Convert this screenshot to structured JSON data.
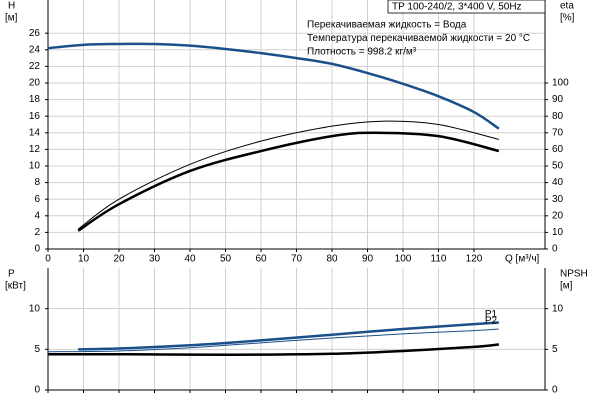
{
  "chart_data": [
    {
      "type": "line",
      "title": "TP 100-240/2, 3*400 V, 50Hz",
      "annotations": [
        "Перекачиваемая жидкость = Вода",
        "Температура перекачиваемой жидкости = 20 °C",
        "Плотность = 998.2 кг/м³"
      ],
      "xlabel": "Q [м³/ч]",
      "ylabel": "H",
      "yunit": "[м]",
      "y2label": "eta",
      "y2unit": "[%]",
      "xlim": [
        0,
        140
      ],
      "xticks": [
        0,
        10,
        20,
        30,
        40,
        50,
        60,
        70,
        80,
        90,
        100,
        110,
        120
      ],
      "ylim": [
        0,
        30
      ],
      "yticks": [
        0,
        2,
        4,
        6,
        8,
        10,
        12,
        14,
        16,
        18,
        20,
        22,
        24,
        26
      ],
      "y2lim": [
        0,
        150
      ],
      "y2ticks": [
        0,
        10,
        20,
        30,
        40,
        50,
        60,
        70,
        80,
        90,
        100
      ],
      "grid": true,
      "show_xtick_labels": true,
      "series": [
        {
          "color": "#1a4f8a",
          "width": 2.5,
          "x": [
            0,
            10,
            20,
            30,
            40,
            50,
            60,
            70,
            80,
            90,
            100,
            110,
            120,
            127
          ],
          "values": [
            24.2,
            24.6,
            24.7,
            24.7,
            24.5,
            24.1,
            23.6,
            23.0,
            22.3,
            21.2,
            19.9,
            18.4,
            16.5,
            14.5
          ]
        },
        {
          "color": "#000000",
          "width": 1,
          "axis": "y2",
          "x": [
            8.5,
            20,
            40,
            60,
            80,
            95,
            110,
            127
          ],
          "values": [
            12,
            30,
            51,
            65,
            74,
            77,
            75,
            66
          ]
        },
        {
          "color": "#000000",
          "width": 2.5,
          "axis": "y2",
          "x": [
            8.5,
            20,
            40,
            60,
            80,
            92,
            110,
            127
          ],
          "values": [
            11,
            27,
            47,
            59,
            68,
            70,
            68,
            59
          ]
        }
      ]
    },
    {
      "type": "line",
      "ylabel": "P",
      "yunit": "[кВт]",
      "y2label": "NPSH",
      "y2unit": "[м]",
      "xlim": [
        0,
        140
      ],
      "xticks": [
        0,
        10,
        20,
        30,
        40,
        50,
        60,
        70,
        80,
        90,
        100,
        110,
        120
      ],
      "ylim": [
        0,
        15
      ],
      "yticks": [
        0,
        5,
        10
      ],
      "y2lim": [
        0,
        15
      ],
      "y2ticks": [
        0,
        5,
        10
      ],
      "grid": true,
      "show_xtick_labels": false,
      "series": [
        {
          "name": "P1",
          "color": "#1a4f8a",
          "width": 2.5,
          "x": [
            8.5,
            20,
            40,
            60,
            80,
            100,
            120,
            127
          ],
          "values": [
            5.0,
            5.1,
            5.5,
            6.1,
            6.8,
            7.5,
            8.1,
            8.3
          ]
        },
        {
          "name": "P2",
          "color": "#1a4f8a",
          "width": 1,
          "x": [
            0,
            20,
            40,
            60,
            80,
            100,
            120,
            127
          ],
          "values": [
            4.7,
            4.8,
            5.2,
            5.8,
            6.4,
            6.9,
            7.3,
            7.5
          ]
        },
        {
          "color": "#000000",
          "width": 2.5,
          "axis": "y2",
          "x": [
            0,
            8.5,
            20,
            40,
            60,
            80,
            100,
            120,
            127
          ],
          "values": [
            4.4,
            4.4,
            4.4,
            4.35,
            4.35,
            4.45,
            4.8,
            5.3,
            5.6
          ]
        }
      ]
    }
  ]
}
